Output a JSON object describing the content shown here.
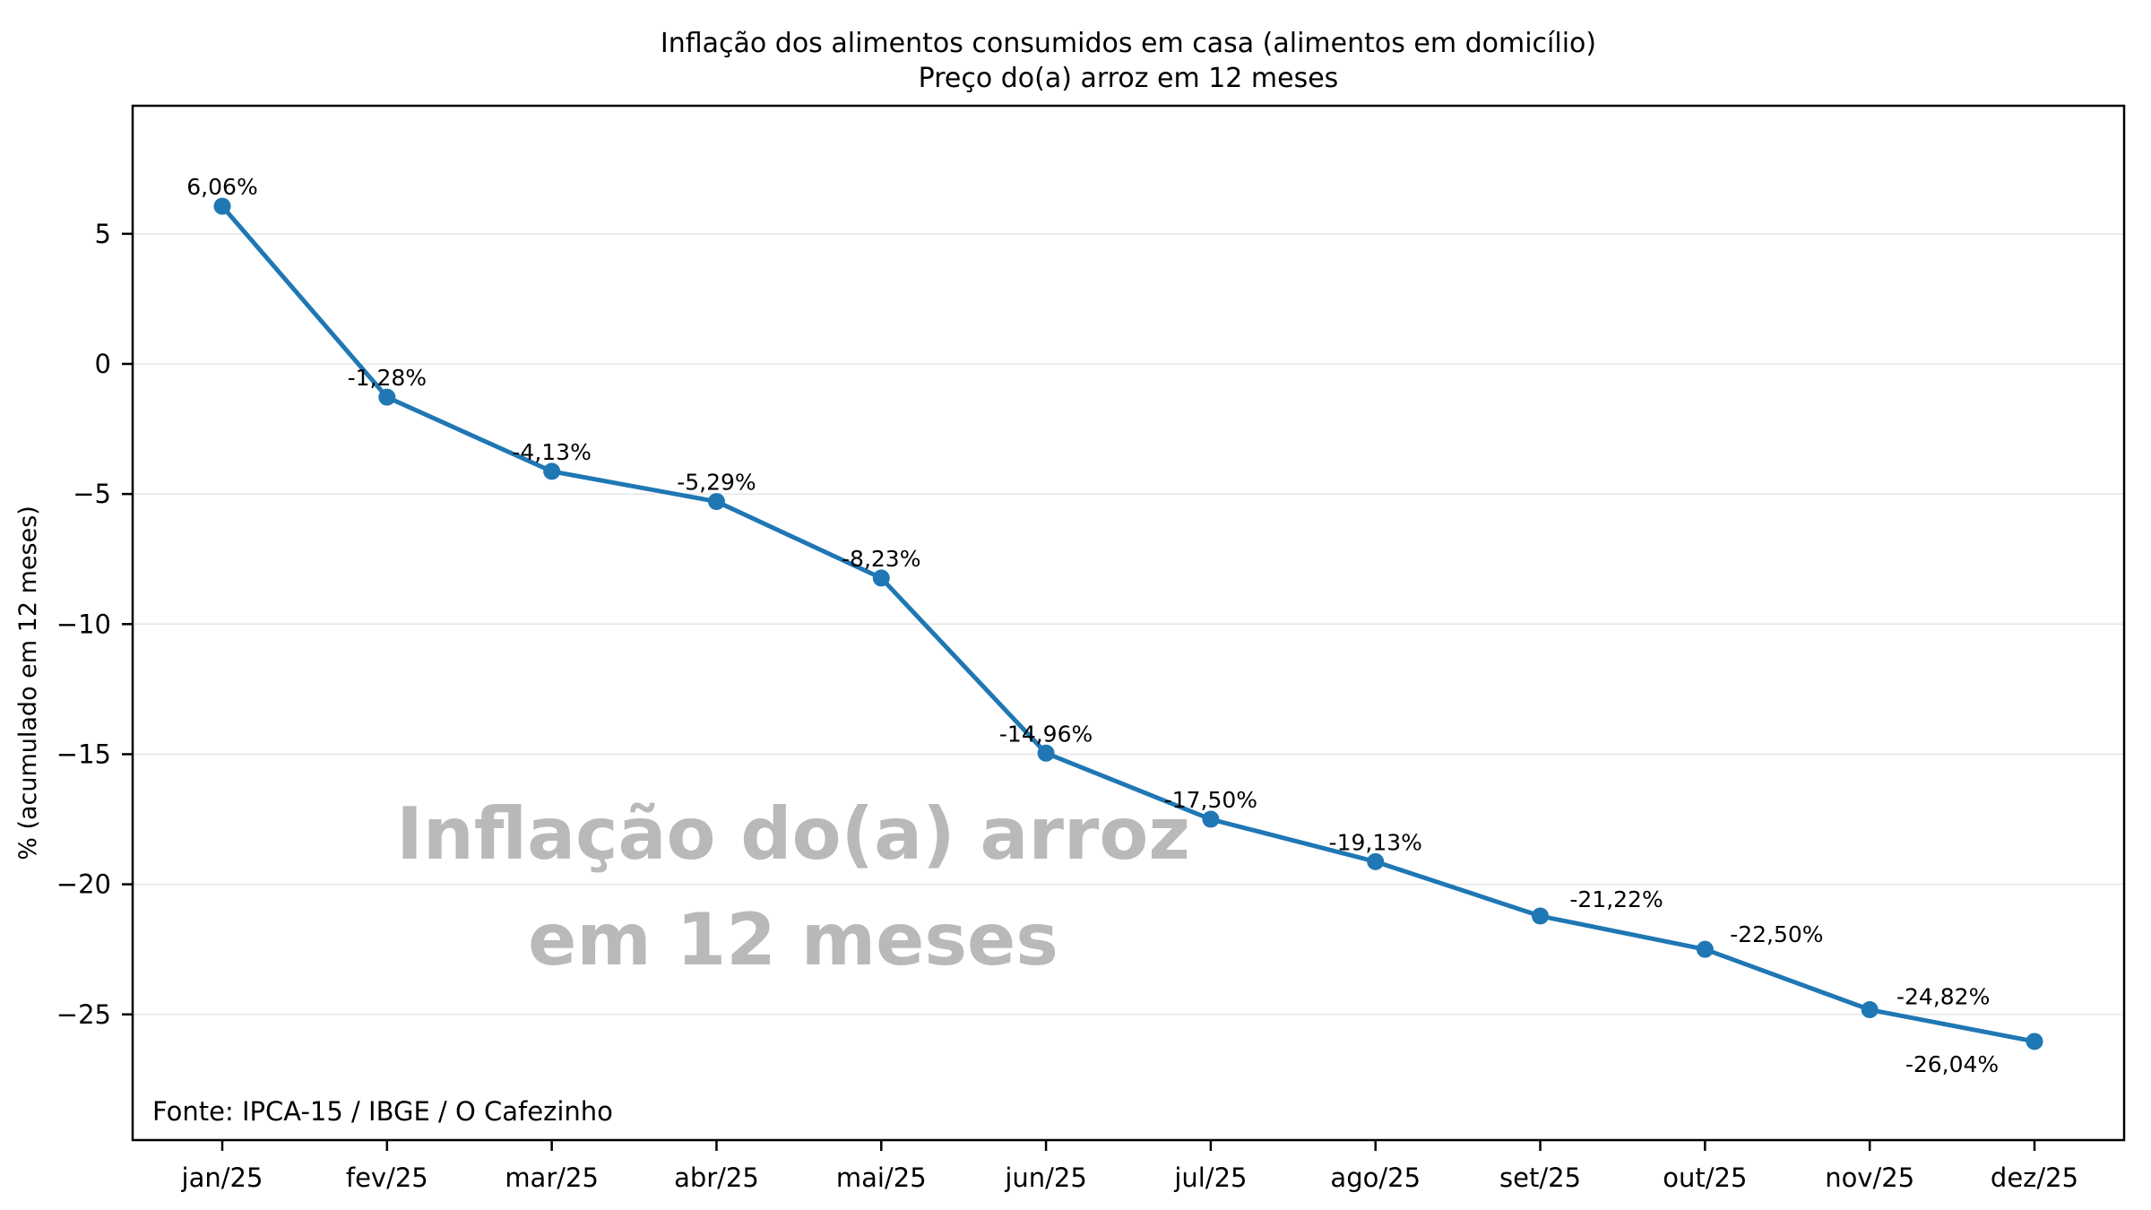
{
  "figure": {
    "title_line1": "Inflação dos alimentos consumidos em casa (alimentos em domicílio)",
    "title_line2": "Preço do(a) arroz em 12 meses",
    "watermark_line1": "Inflação do(a) arroz",
    "watermark_line2": "em 12 meses",
    "source_note": "Fonte: IPCA-15 / IBGE / O Cafezinho"
  },
  "chart_data": {
    "type": "line",
    "title": "Inflação dos alimentos consumidos em casa (alimentos em domicílio)",
    "subtitle": "Preço do(a) arroz em 12 meses",
    "xlabel": "",
    "ylabel": "% (acumulado em 12 meses)",
    "categories": [
      "jan/25",
      "fev/25",
      "mar/25",
      "abr/25",
      "mai/25",
      "jun/25",
      "jul/25",
      "ago/25",
      "set/25",
      "out/25",
      "nov/25",
      "dez/25"
    ],
    "values": [
      6.06,
      -1.28,
      -4.13,
      -5.29,
      -8.23,
      -14.96,
      -17.5,
      -19.13,
      -21.22,
      -22.5,
      -24.82,
      -26.04
    ],
    "point_labels": [
      "6,06%",
      "-1,28%",
      "-4,13%",
      "-5,29%",
      "-8,23%",
      "-14,96%",
      "-17,50%",
      "-19,13%",
      "-21,22%",
      "-22,50%",
      "-24,82%",
      "-26,04%"
    ],
    "yticks": [
      5,
      0,
      -5,
      -10,
      -15,
      -20,
      -25
    ],
    "ytick_labels": [
      "5",
      "0",
      "−5",
      "−10",
      "−15",
      "−20",
      "−25"
    ],
    "ylim": [
      -29.9,
      9.9
    ],
    "grid": "horizontal",
    "legend": "none",
    "line_color": "#1f77b4",
    "marker": "circle",
    "grid_color": "#e6e6e6",
    "spine_color": "#000000",
    "watermark_color": "#b9b9b9"
  }
}
